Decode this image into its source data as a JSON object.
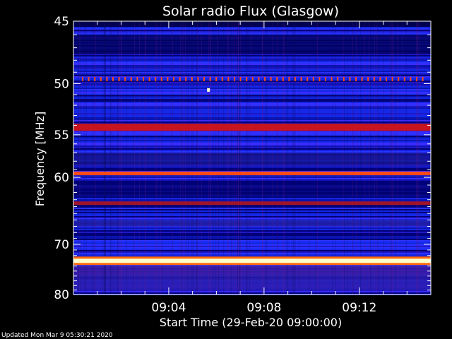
{
  "chart_data": {
    "type": "heatmap",
    "title": "Solar radio Flux (Glasgow)",
    "ylabel": "Frequency [MHz]",
    "xlabel": "Start Time (29-Feb-20 09:00:00)",
    "y_axis": {
      "range": [
        45,
        80
      ],
      "direction": "downward",
      "ticks": [
        45,
        50,
        55,
        60,
        70,
        80
      ],
      "scale": "reciprocal"
    },
    "x_axis": {
      "range": [
        "09:00",
        "09:15"
      ],
      "ticks": [
        "09:04",
        "09:08",
        "09:12"
      ]
    },
    "colormap": [
      "#000064",
      "#1428e6",
      "#3b2cff",
      "#b4141e",
      "#ff4614",
      "#ffffc8"
    ],
    "features": [
      {
        "kind": "band",
        "frequency_mhz": 54.2,
        "intensity": "red"
      },
      {
        "kind": "band",
        "frequency_mhz": 59.5,
        "intensity": "orange"
      },
      {
        "kind": "band",
        "frequency_mhz": 63.5,
        "intensity": "dark-red"
      },
      {
        "kind": "band",
        "frequency_mhz": 73.0,
        "intensity": "yellow-white"
      },
      {
        "kind": "periodic-dots",
        "frequency_mhz": 49.6,
        "intensity": "orange"
      },
      {
        "kind": "spot",
        "frequency_mhz": 50.6,
        "time": "09:05:40",
        "intensity": "yellow-white"
      }
    ]
  },
  "footer": {
    "updated": "Updated Mon Mar  9 05:30:21 2020"
  }
}
